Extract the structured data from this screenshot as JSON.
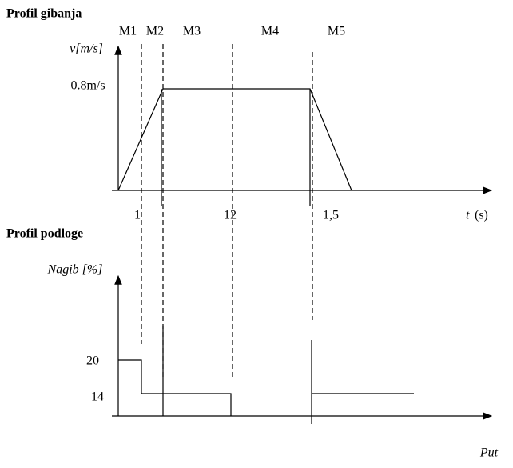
{
  "motion": {
    "title": "Profil gibanja",
    "phases": [
      "M1",
      "M2",
      "M3",
      "M4",
      "M5"
    ],
    "y_label": "v[m/s]",
    "speed_label": "0.8m/s",
    "x_labels": [
      "1",
      "12",
      "1,5"
    ],
    "x_axis_symbol": "t",
    "x_axis_unit": "(s)"
  },
  "terrain": {
    "title": "Profil podloge",
    "y_label": "Nagib [%]",
    "y_labels": [
      "20",
      "14"
    ],
    "x_axis": "Put"
  }
}
